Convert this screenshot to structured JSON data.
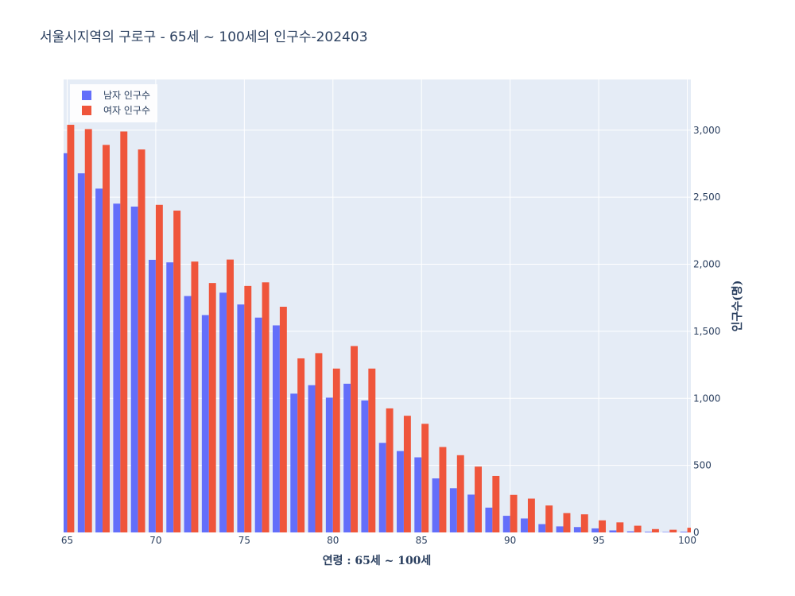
{
  "chart_data": {
    "type": "bar",
    "title": "서울시지역의 구로구 - 65세 ~ 100세의 인구수-202403",
    "xlabel": "연령 : 65세 ~ 100세",
    "ylabel": "인구수(명)",
    "x": [
      65,
      66,
      67,
      68,
      69,
      70,
      71,
      72,
      73,
      74,
      75,
      76,
      77,
      78,
      79,
      80,
      81,
      82,
      83,
      84,
      85,
      86,
      87,
      88,
      89,
      90,
      91,
      92,
      93,
      94,
      95,
      96,
      97,
      98,
      99,
      100
    ],
    "xlim": [
      64.8,
      100.2
    ],
    "ylim": [
      0,
      3378
    ],
    "xticks": [
      65,
      70,
      75,
      80,
      85,
      90,
      95,
      100
    ],
    "yticks": [
      0,
      500,
      1000,
      1500,
      2000,
      2500,
      3000
    ],
    "ytick_labels": [
      "0",
      "500",
      "1,000",
      "1,500",
      "2,000",
      "2,500",
      "3,000"
    ],
    "y_axis_side": "right",
    "legend_position": "top-left",
    "grid": true,
    "series": [
      {
        "name": "남자 인구수",
        "color": "#636efa",
        "values": [
          2828,
          2678,
          2564,
          2452,
          2430,
          2033,
          2014,
          1763,
          1621,
          1788,
          1700,
          1602,
          1544,
          1035,
          1098,
          1005,
          1109,
          984,
          668,
          607,
          560,
          403,
          330,
          282,
          185,
          124,
          104,
          62,
          45,
          40,
          30,
          15,
          8,
          5,
          3,
          5
        ]
      },
      {
        "name": "여자 인구수",
        "color": "#ef553b",
        "values": [
          3040,
          3008,
          2890,
          2990,
          2856,
          2443,
          2400,
          2020,
          1860,
          2035,
          1838,
          1865,
          1683,
          1298,
          1337,
          1222,
          1390,
          1222,
          925,
          870,
          810,
          637,
          576,
          491,
          421,
          280,
          252,
          201,
          144,
          135,
          90,
          75,
          50,
          25,
          20,
          35
        ]
      }
    ]
  }
}
